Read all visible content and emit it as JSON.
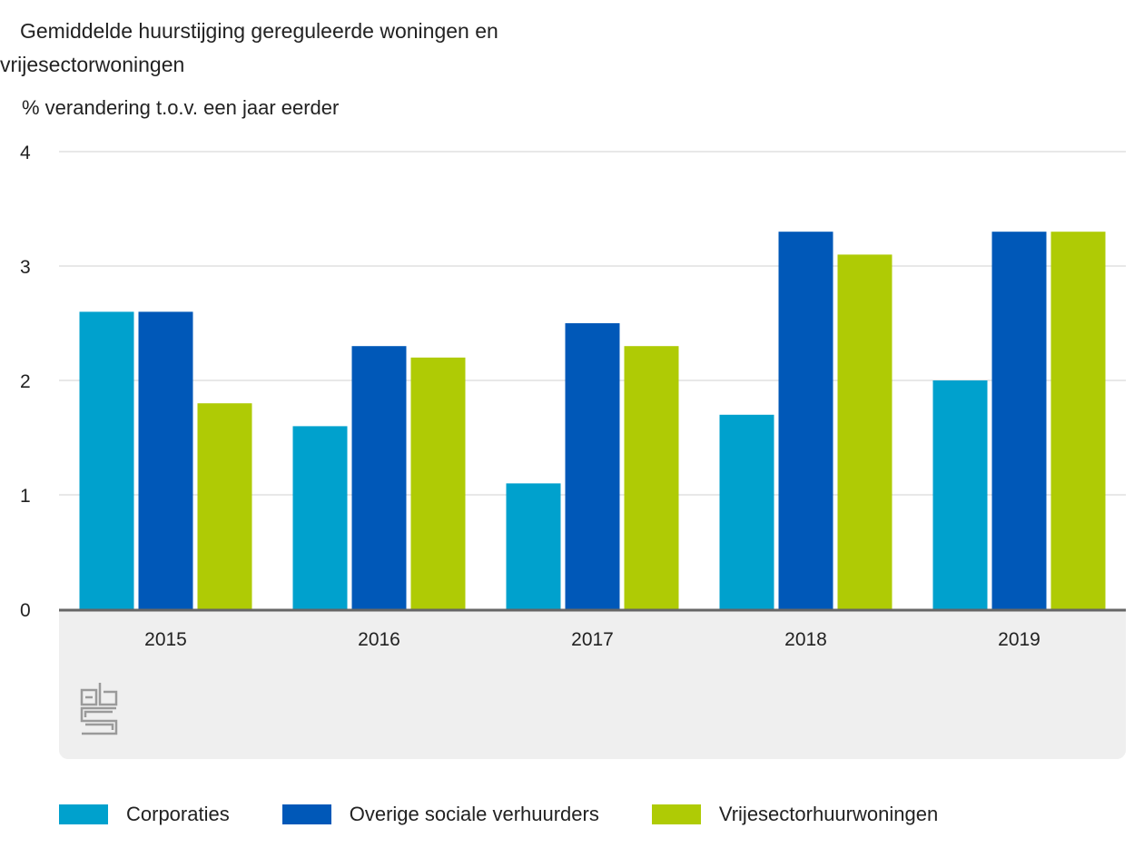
{
  "chart_data": {
    "type": "bar",
    "title": "Gemiddelde huurstijging gereguleerde woningen en vrijesectorwoningen",
    "title_line1": "Gemiddelde huurstijging gereguleerde woningen en",
    "title_line2": "vrijesectorwoningen",
    "ylabel": "% verandering t.o.v. een jaar eerder",
    "categories": [
      "2015",
      "2016",
      "2017",
      "2018",
      "2019"
    ],
    "series": [
      {
        "name": "Corporaties",
        "color": "#00a1cd",
        "values": [
          2.6,
          1.6,
          1.1,
          1.7,
          2.0
        ]
      },
      {
        "name": "Overige sociale verhuurders",
        "color": "#0058b8",
        "values": [
          2.6,
          2.3,
          2.5,
          3.3,
          3.3
        ]
      },
      {
        "name": "Vrijesectorhuurwoningen",
        "color": "#afcb05",
        "values": [
          1.8,
          2.2,
          2.3,
          3.1,
          3.3
        ]
      }
    ],
    "ylim": [
      0,
      4
    ],
    "yticks": [
      "0",
      "1",
      "2",
      "3",
      "4"
    ],
    "grid": true,
    "legend_position": "bottom"
  },
  "logo": "cbs-logo"
}
